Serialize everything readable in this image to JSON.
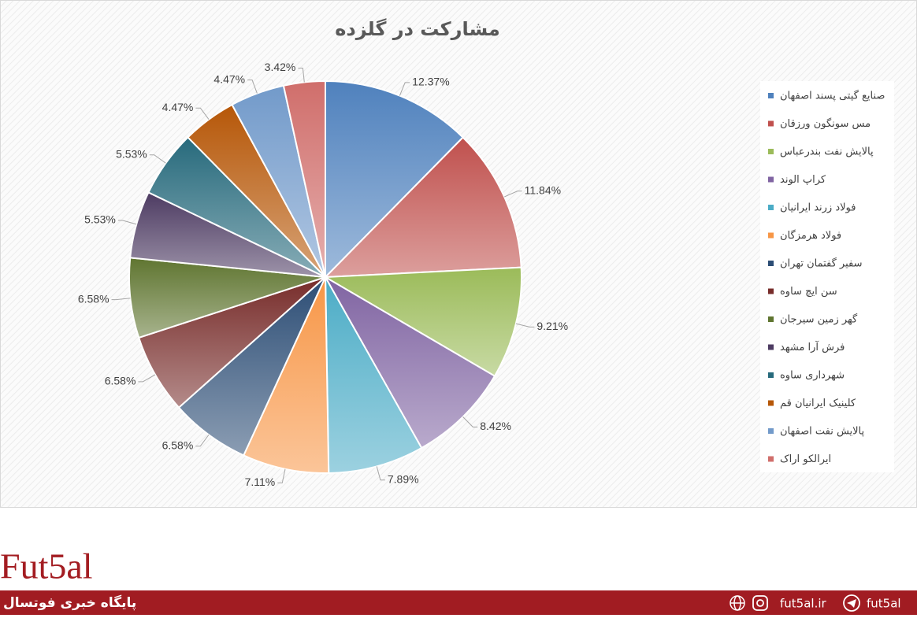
{
  "chart_data": {
    "type": "pie",
    "title": "مشارکت در گلزده",
    "categories": [
      "صنایع گیتی پسند اصفهان",
      "مس سونگون ورزقان",
      "پالایش نفت بندرعباس",
      "کراپ الوند",
      "فولاد زرند ایرانیان",
      "فولاد هرمزگان",
      "سفیر گفتمان تهران",
      "سن ایچ ساوه",
      "گهر زمین سیرجان",
      "فرش آرا مشهد",
      "شهرداری ساوه",
      "کلینیک ایرانیان قم",
      "پالایش نفت اصفهان",
      "ایرالکو اراک"
    ],
    "values": [
      12.37,
      11.84,
      9.21,
      8.42,
      7.89,
      7.11,
      6.58,
      6.58,
      6.58,
      5.53,
      5.53,
      4.47,
      4.47,
      3.42
    ],
    "value_labels": [
      "12.37%",
      "11.84%",
      "9.21%",
      "8.42%",
      "7.89%",
      "7.11%",
      "6.58%",
      "6.58%",
      "6.58%",
      "5.53%",
      "5.53%",
      "4.47%",
      "4.47%",
      "3.42%"
    ],
    "colors": [
      "#4f81bd",
      "#c0504d",
      "#9bbb59",
      "#8064a2",
      "#4bacc6",
      "#f79646",
      "#2c4d75",
      "#772c2a",
      "#5f7530",
      "#4d3b62",
      "#276a7c",
      "#b65708",
      "#729aca",
      "#d06e6b"
    ],
    "legend": "right"
  },
  "footer": {
    "logo": "Fut5al",
    "tagline": "پایگاه خبری فوتسال",
    "website": "fut5al.ir",
    "handle": "fut5al"
  }
}
